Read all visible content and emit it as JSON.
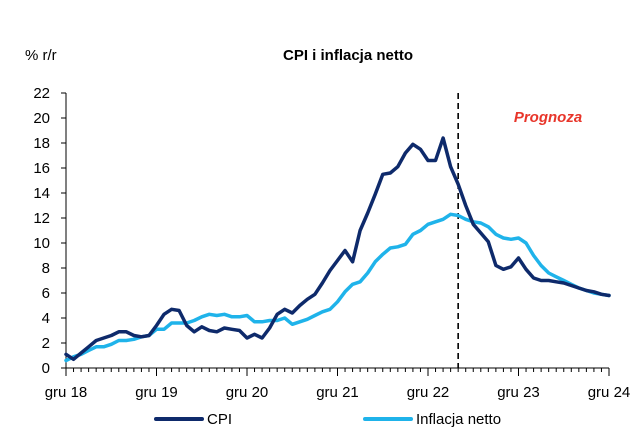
{
  "chart_data": {
    "type": "line",
    "title": "CPI i inflacja netto",
    "ylabel": "% r/r",
    "xlabel": "",
    "ylim": [
      0,
      22
    ],
    "yticks": [
      0,
      2,
      4,
      6,
      8,
      10,
      12,
      14,
      16,
      18,
      20,
      22
    ],
    "xlim": [
      "2018-12",
      "2024-12"
    ],
    "xticks": [
      "gru 18",
      "gru 19",
      "gru 20",
      "gru 21",
      "gru 22",
      "gru 23",
      "gru 24"
    ],
    "grid": false,
    "legend_position": "bottom",
    "annotation": {
      "text": "Prognoza",
      "color": "#e8352a"
    },
    "forecast_start": "2023-04",
    "series": [
      {
        "name": "CPI",
        "color": "#0e2a6b",
        "x": [
          "2018-12",
          "2019-01",
          "2019-02",
          "2019-03",
          "2019-04",
          "2019-05",
          "2019-06",
          "2019-07",
          "2019-08",
          "2019-09",
          "2019-10",
          "2019-11",
          "2019-12",
          "2020-01",
          "2020-02",
          "2020-03",
          "2020-04",
          "2020-05",
          "2020-06",
          "2020-07",
          "2020-08",
          "2020-09",
          "2020-10",
          "2020-11",
          "2020-12",
          "2021-01",
          "2021-02",
          "2021-03",
          "2021-04",
          "2021-05",
          "2021-06",
          "2021-07",
          "2021-08",
          "2021-09",
          "2021-10",
          "2021-11",
          "2021-12",
          "2022-01",
          "2022-02",
          "2022-03",
          "2022-04",
          "2022-05",
          "2022-06",
          "2022-07",
          "2022-08",
          "2022-09",
          "2022-10",
          "2022-11",
          "2022-12",
          "2023-01",
          "2023-02",
          "2023-03",
          "2023-04",
          "2023-05",
          "2023-06",
          "2023-07",
          "2023-08",
          "2023-09",
          "2023-10",
          "2023-11",
          "2023-12",
          "2024-01",
          "2024-02",
          "2024-03",
          "2024-04",
          "2024-05",
          "2024-06",
          "2024-07",
          "2024-08",
          "2024-09",
          "2024-10",
          "2024-11",
          "2024-12"
        ],
        "values": [
          1.1,
          0.7,
          1.2,
          1.7,
          2.2,
          2.4,
          2.6,
          2.9,
          2.9,
          2.6,
          2.5,
          2.6,
          3.4,
          4.3,
          4.7,
          4.6,
          3.4,
          2.9,
          3.3,
          3.0,
          2.9,
          3.2,
          3.1,
          3.0,
          2.4,
          2.7,
          2.4,
          3.2,
          4.3,
          4.7,
          4.4,
          5.0,
          5.5,
          5.9,
          6.8,
          7.8,
          8.6,
          9.4,
          8.5,
          11.0,
          12.4,
          13.9,
          15.5,
          15.6,
          16.1,
          17.2,
          17.9,
          17.5,
          16.6,
          16.6,
          18.4,
          16.1,
          14.7,
          13.0,
          11.5,
          10.8,
          10.1,
          8.2,
          7.9,
          8.1,
          8.8,
          7.9,
          7.2,
          7.0,
          7.0,
          6.9,
          6.8,
          6.6,
          6.4,
          6.2,
          6.1,
          5.9,
          5.8
        ]
      },
      {
        "name": "Inflacja netto",
        "color": "#1fb3ea",
        "x": [
          "2018-12",
          "2019-01",
          "2019-02",
          "2019-03",
          "2019-04",
          "2019-05",
          "2019-06",
          "2019-07",
          "2019-08",
          "2019-09",
          "2019-10",
          "2019-11",
          "2019-12",
          "2020-01",
          "2020-02",
          "2020-03",
          "2020-04",
          "2020-05",
          "2020-06",
          "2020-07",
          "2020-08",
          "2020-09",
          "2020-10",
          "2020-11",
          "2020-12",
          "2021-01",
          "2021-02",
          "2021-03",
          "2021-04",
          "2021-05",
          "2021-06",
          "2021-07",
          "2021-08",
          "2021-09",
          "2021-10",
          "2021-11",
          "2021-12",
          "2022-01",
          "2022-02",
          "2022-03",
          "2022-04",
          "2022-05",
          "2022-06",
          "2022-07",
          "2022-08",
          "2022-09",
          "2022-10",
          "2022-11",
          "2022-12",
          "2023-01",
          "2023-02",
          "2023-03",
          "2023-04",
          "2023-05",
          "2023-06",
          "2023-07",
          "2023-08",
          "2023-09",
          "2023-10",
          "2023-11",
          "2023-12",
          "2024-01",
          "2024-02",
          "2024-03",
          "2024-04",
          "2024-05",
          "2024-06",
          "2024-07",
          "2024-08",
          "2024-09",
          "2024-10",
          "2024-11",
          "2024-12"
        ],
        "values": [
          0.6,
          0.9,
          1.1,
          1.4,
          1.7,
          1.7,
          1.9,
          2.2,
          2.2,
          2.3,
          2.5,
          2.6,
          3.1,
          3.1,
          3.6,
          3.6,
          3.6,
          3.8,
          4.1,
          4.3,
          4.2,
          4.3,
          4.1,
          4.1,
          4.2,
          3.7,
          3.7,
          3.8,
          3.8,
          4.0,
          3.5,
          3.7,
          3.9,
          4.2,
          4.5,
          4.7,
          5.3,
          6.1,
          6.7,
          6.9,
          7.6,
          8.5,
          9.1,
          9.6,
          9.7,
          9.9,
          10.7,
          11.0,
          11.5,
          11.7,
          11.9,
          12.3,
          12.2,
          11.9,
          11.7,
          11.6,
          11.3,
          10.7,
          10.4,
          10.3,
          10.4,
          10.0,
          9.0,
          8.2,
          7.6,
          7.3,
          7.0,
          6.7,
          6.4,
          6.2,
          6.0,
          5.9,
          5.8
        ]
      }
    ]
  }
}
